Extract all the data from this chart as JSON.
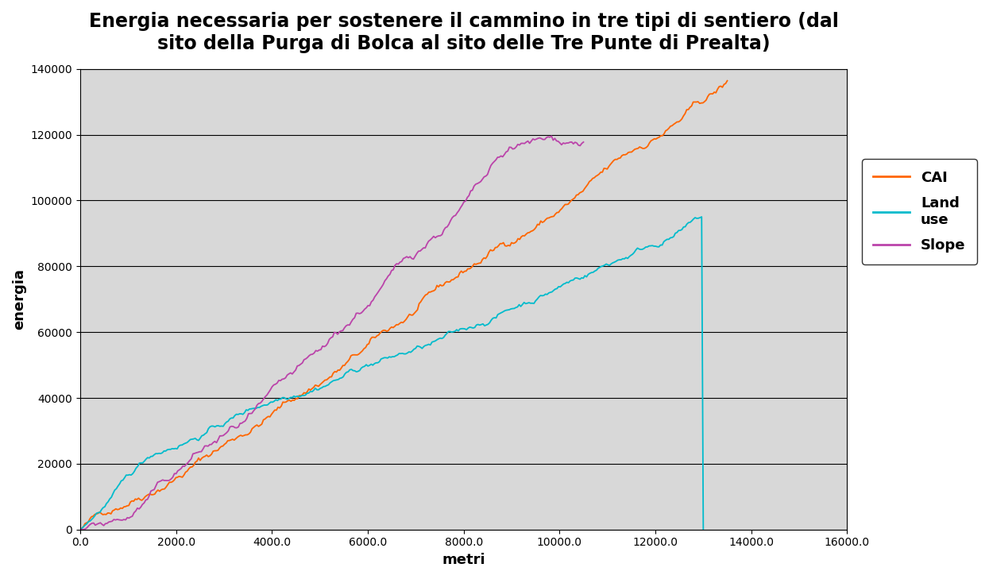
{
  "title_line1": "Energia necessaria per sostenere il cammino in tre tipi di sentiero (dal",
  "title_line2": "sito della Purga di Bolca al sito delle Tre Punte di Prealta)",
  "xlabel": "metri",
  "ylabel": "energia",
  "xlim": [
    0,
    16000
  ],
  "ylim": [
    0,
    140000
  ],
  "xticks": [
    0.0,
    2000.0,
    4000.0,
    6000.0,
    8000.0,
    10000.0,
    12000.0,
    14000.0,
    16000.0
  ],
  "xtick_labels": [
    "0.0",
    "2000.0",
    "4000.0",
    "6000.0",
    "8000.0",
    "10000.0",
    "12000.0",
    "14000.0",
    "16000.0"
  ],
  "yticks": [
    0,
    20000,
    40000,
    60000,
    80000,
    100000,
    120000,
    140000
  ],
  "ytick_labels": [
    "0",
    "20000",
    "40000",
    "60000",
    "80000",
    "100000",
    "120000",
    "140000"
  ],
  "cai_color": "#FF6600",
  "landuse_color": "#00BBCC",
  "slope_color": "#BB44AA",
  "background_color": "#FFFFFF",
  "plot_bg_color": "#D8D8D8",
  "title_fontsize": 17,
  "axis_label_fontsize": 13,
  "tick_fontsize": 10,
  "legend_fontsize": 13
}
